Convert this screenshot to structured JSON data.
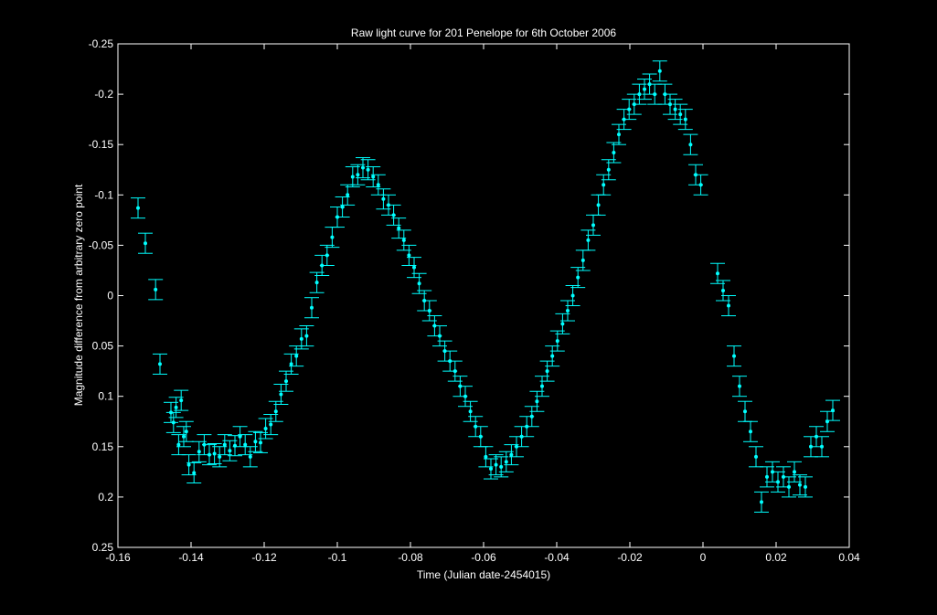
{
  "chart_data": {
    "type": "scatter",
    "title": "Raw light curve for 201 Penelope for 6th October 2006",
    "xlabel": "Time (Julian date-2454015)",
    "ylabel": "Magnitude difference from arbitrary zero point",
    "xlim": [
      -0.16,
      0.04
    ],
    "ylim": [
      0.25,
      -0.25
    ],
    "y_axis_reversed": true,
    "x_ticks": [
      "-0.16",
      "-0.14",
      "-0.12",
      "-0.1",
      "-0.08",
      "-0.06",
      "-0.04",
      "-0.02",
      "0",
      "0.02",
      "0.04"
    ],
    "x_tick_values": [
      -0.16,
      -0.14,
      -0.12,
      -0.1,
      -0.08,
      -0.06,
      -0.04,
      -0.02,
      0,
      0.02,
      0.04
    ],
    "y_ticks": [
      "-0.25",
      "-0.2",
      "-0.15",
      "-0.1",
      "-0.05",
      "0",
      "0.05",
      "0.1",
      "0.15",
      "0.2",
      "0.25"
    ],
    "y_tick_values": [
      -0.25,
      -0.2,
      -0.15,
      -0.1,
      -0.05,
      0,
      0.05,
      0.1,
      0.15,
      0.2,
      0.25
    ],
    "grid": false,
    "colors": {
      "background": "#000000",
      "axes": "#ffffff",
      "series": "#00ffff"
    },
    "error": 0.01,
    "series": [
      {
        "points": [
          [
            -0.1545,
            -0.087
          ],
          [
            -0.1525,
            -0.052
          ],
          [
            -0.1497,
            -0.006
          ],
          [
            -0.1485,
            0.068
          ],
          [
            -0.1455,
            0.116
          ],
          [
            -0.1448,
            0.126
          ],
          [
            -0.1441,
            0.111
          ],
          [
            -0.1434,
            0.148
          ],
          [
            -0.1427,
            0.104
          ],
          [
            -0.142,
            0.14
          ],
          [
            -0.1413,
            0.135
          ],
          [
            -0.1406,
            0.168
          ],
          [
            -0.1392,
            0.176
          ],
          [
            -0.1378,
            0.155
          ],
          [
            -0.1364,
            0.148
          ],
          [
            -0.135,
            0.158
          ],
          [
            -0.1336,
            0.157
          ],
          [
            -0.1322,
            0.16
          ],
          [
            -0.1308,
            0.148
          ],
          [
            -0.1294,
            0.154
          ],
          [
            -0.128,
            0.149
          ],
          [
            -0.1266,
            0.14
          ],
          [
            -0.1252,
            0.148
          ],
          [
            -0.1238,
            0.16
          ],
          [
            -0.1224,
            0.145
          ],
          [
            -0.121,
            0.146
          ],
          [
            -0.1196,
            0.132
          ],
          [
            -0.1182,
            0.128
          ],
          [
            -0.1168,
            0.115
          ],
          [
            -0.1154,
            0.098
          ],
          [
            -0.114,
            0.085
          ],
          [
            -0.1126,
            0.068
          ],
          [
            -0.1112,
            0.06
          ],
          [
            -0.1098,
            0.043
          ],
          [
            -0.1084,
            0.04
          ],
          [
            -0.107,
            0.012
          ],
          [
            -0.1056,
            -0.013
          ],
          [
            -0.1042,
            -0.03
          ],
          [
            -0.1028,
            -0.04
          ],
          [
            -0.1014,
            -0.058
          ],
          [
            -0.1,
            -0.078
          ],
          [
            -0.0986,
            -0.088
          ],
          [
            -0.0972,
            -0.1
          ],
          [
            -0.0958,
            -0.118
          ],
          [
            -0.0944,
            -0.12
          ],
          [
            -0.093,
            -0.127
          ],
          [
            -0.0916,
            -0.125
          ],
          [
            -0.0902,
            -0.118
          ],
          [
            -0.0888,
            -0.11
          ],
          [
            -0.0874,
            -0.096
          ],
          [
            -0.086,
            -0.09
          ],
          [
            -0.0846,
            -0.08
          ],
          [
            -0.0832,
            -0.067
          ],
          [
            -0.0818,
            -0.055
          ],
          [
            -0.0804,
            -0.04
          ],
          [
            -0.079,
            -0.028
          ],
          [
            -0.0776,
            -0.012
          ],
          [
            -0.0762,
            0.005
          ],
          [
            -0.0748,
            0.015
          ],
          [
            -0.0734,
            0.03
          ],
          [
            -0.072,
            0.04
          ],
          [
            -0.0706,
            0.055
          ],
          [
            -0.0692,
            0.065
          ],
          [
            -0.0678,
            0.075
          ],
          [
            -0.0664,
            0.09
          ],
          [
            -0.065,
            0.1
          ],
          [
            -0.0636,
            0.115
          ],
          [
            -0.0622,
            0.13
          ],
          [
            -0.0608,
            0.14
          ],
          [
            -0.0594,
            0.16
          ],
          [
            -0.058,
            0.172
          ],
          [
            -0.0566,
            0.168
          ],
          [
            -0.0552,
            0.17
          ],
          [
            -0.0538,
            0.165
          ],
          [
            -0.0524,
            0.158
          ],
          [
            -0.051,
            0.15
          ],
          [
            -0.0496,
            0.14
          ],
          [
            -0.0482,
            0.13
          ],
          [
            -0.0468,
            0.12
          ],
          [
            -0.0454,
            0.105
          ],
          [
            -0.044,
            0.09
          ],
          [
            -0.0426,
            0.075
          ],
          [
            -0.0412,
            0.06
          ],
          [
            -0.0398,
            0.045
          ],
          [
            -0.0384,
            0.028
          ],
          [
            -0.037,
            0.015
          ],
          [
            -0.0356,
            0.0
          ],
          [
            -0.0342,
            -0.018
          ],
          [
            -0.0328,
            -0.035
          ],
          [
            -0.0314,
            -0.055
          ],
          [
            -0.03,
            -0.07
          ],
          [
            -0.0286,
            -0.09
          ],
          [
            -0.0272,
            -0.11
          ],
          [
            -0.0258,
            -0.125
          ],
          [
            -0.0244,
            -0.142
          ],
          [
            -0.023,
            -0.16
          ],
          [
            -0.0216,
            -0.175
          ],
          [
            -0.0202,
            -0.185
          ],
          [
            -0.0188,
            -0.19
          ],
          [
            -0.0174,
            -0.2
          ],
          [
            -0.016,
            -0.205
          ],
          [
            -0.0146,
            -0.21
          ],
          [
            -0.0132,
            -0.2
          ],
          [
            -0.0118,
            -0.223
          ],
          [
            -0.0104,
            -0.2
          ],
          [
            -0.009,
            -0.19
          ],
          [
            -0.0076,
            -0.185
          ],
          [
            -0.0062,
            -0.18
          ],
          [
            -0.0048,
            -0.175
          ],
          [
            -0.0034,
            -0.15
          ],
          [
            -0.002,
            -0.12
          ],
          [
            -0.0006,
            -0.11
          ],
          [
            0.004,
            -0.022
          ],
          [
            0.0055,
            -0.005
          ],
          [
            0.007,
            0.01
          ],
          [
            0.0085,
            0.06
          ],
          [
            0.01,
            0.09
          ],
          [
            0.0115,
            0.115
          ],
          [
            0.013,
            0.135
          ],
          [
            0.0145,
            0.16
          ],
          [
            0.016,
            0.205
          ],
          [
            0.0175,
            0.18
          ],
          [
            0.019,
            0.175
          ],
          [
            0.0205,
            0.185
          ],
          [
            0.022,
            0.18
          ],
          [
            0.0235,
            0.19
          ],
          [
            0.025,
            0.175
          ],
          [
            0.0265,
            0.188
          ],
          [
            0.028,
            0.19
          ],
          [
            0.0295,
            0.15
          ],
          [
            0.031,
            0.14
          ],
          [
            0.0325,
            0.15
          ],
          [
            0.034,
            0.125
          ],
          [
            0.0355,
            0.114
          ]
        ]
      }
    ]
  }
}
